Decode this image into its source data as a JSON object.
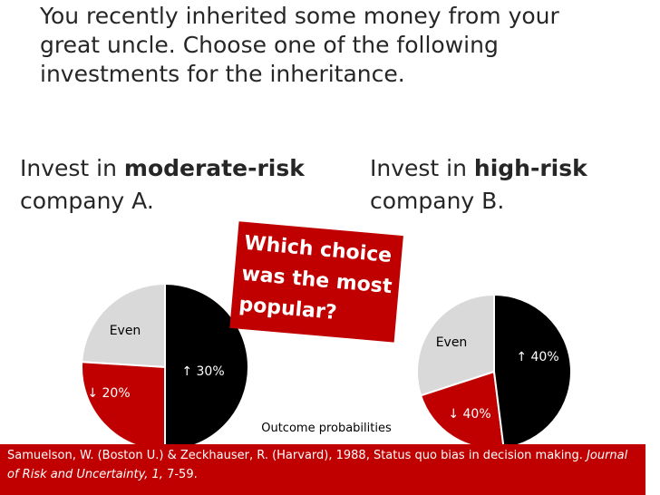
{
  "heading": [
    "You recently inherited some money from your",
    "great uncle.  Choose one of the following",
    "investments for the inheritance."
  ],
  "options": [
    {
      "prefix": "Invest in ",
      "emphasis": "moderate-risk",
      "suffix": "company A."
    },
    {
      "prefix": "Invest in ",
      "emphasis": "high-risk",
      "suffix": "company B."
    }
  ],
  "callout": [
    "Which choice",
    "was the most",
    "popular?"
  ],
  "caption": "Outcome probabilities",
  "citation": {
    "text": "Samuelson, W. (Boston U.) & Zeckhauser, R. (Harvard), 1988, Status quo bias in decision making. ",
    "journal": "Journal of Risk and Uncertainty, 1,",
    "pages": " 7-59."
  },
  "chart_data": [
    {
      "type": "pie",
      "categories": [
        "↑ 30%",
        "↓ 20%",
        "Even"
      ],
      "values": [
        50,
        26,
        24
      ],
      "colors": [
        "#000000",
        "#c00000",
        "#d9d9d9"
      ]
    },
    {
      "type": "pie",
      "categories": [
        "↑ 40%",
        "↓ 40%",
        "Even"
      ],
      "values": [
        48,
        22,
        30
      ],
      "colors": [
        "#000000",
        "#c00000",
        "#d9d9d9"
      ]
    }
  ]
}
